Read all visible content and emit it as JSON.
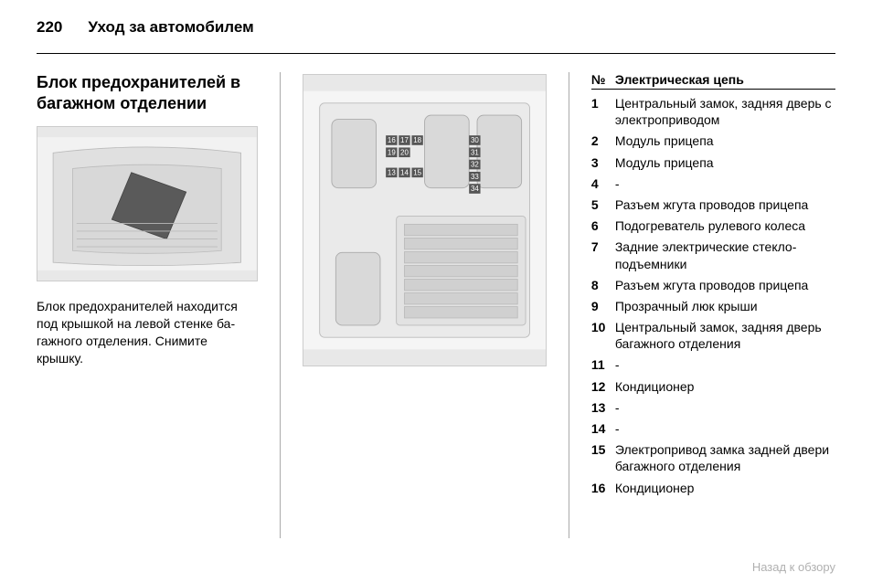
{
  "page_number": "220",
  "chapter_title": "Уход за автомобилем",
  "section_title": "Блок предохранителей в багажном отделении",
  "paragraph": "Блок предохранителей находится под крышкой на левой стенке ба‐гажного отделения. Снимите крышку.",
  "image1_alt": "[рисунок: крышка блока предохранителей в багажнике]",
  "image2_alt": "[рисунок: схема блока предохранителей]",
  "fuse_table": {
    "header_no": "№",
    "header_circuit": "Электрическая цепь",
    "rows": [
      {
        "n": "1",
        "d": "Центральный замок, задняя дверь с электроприводом"
      },
      {
        "n": "2",
        "d": "Модуль прицепа"
      },
      {
        "n": "3",
        "d": "Модуль прицепа"
      },
      {
        "n": "4",
        "d": "-"
      },
      {
        "n": "5",
        "d": "Разъем жгута проводов прицепа"
      },
      {
        "n": "6",
        "d": "Подогреватель рулевого колеса"
      },
      {
        "n": "7",
        "d": "Задние электрические стекло‐подъемники"
      },
      {
        "n": "8",
        "d": "Разъем жгута проводов прицепа"
      },
      {
        "n": "9",
        "d": "Прозрачный люк крыши"
      },
      {
        "n": "10",
        "d": "Центральный замок, задняя дверь багажного отделения"
      },
      {
        "n": "11",
        "d": "-"
      },
      {
        "n": "12",
        "d": "Кондиционер"
      },
      {
        "n": "13",
        "d": "-"
      },
      {
        "n": "14",
        "d": "-"
      },
      {
        "n": "15",
        "d": "Электропривод замка задней двери багажного отделения"
      },
      {
        "n": "16",
        "d": "Кондиционер"
      }
    ]
  },
  "footer_link": "Назад к обзору",
  "colors": {
    "text": "#000000",
    "footer": "#b0b0b0",
    "separator": "#aaaaaa",
    "image_bg": "#e8e8e8"
  },
  "fonts": {
    "body_size_pt": 14,
    "title_size_pt": 18,
    "header_size_pt": 17
  }
}
